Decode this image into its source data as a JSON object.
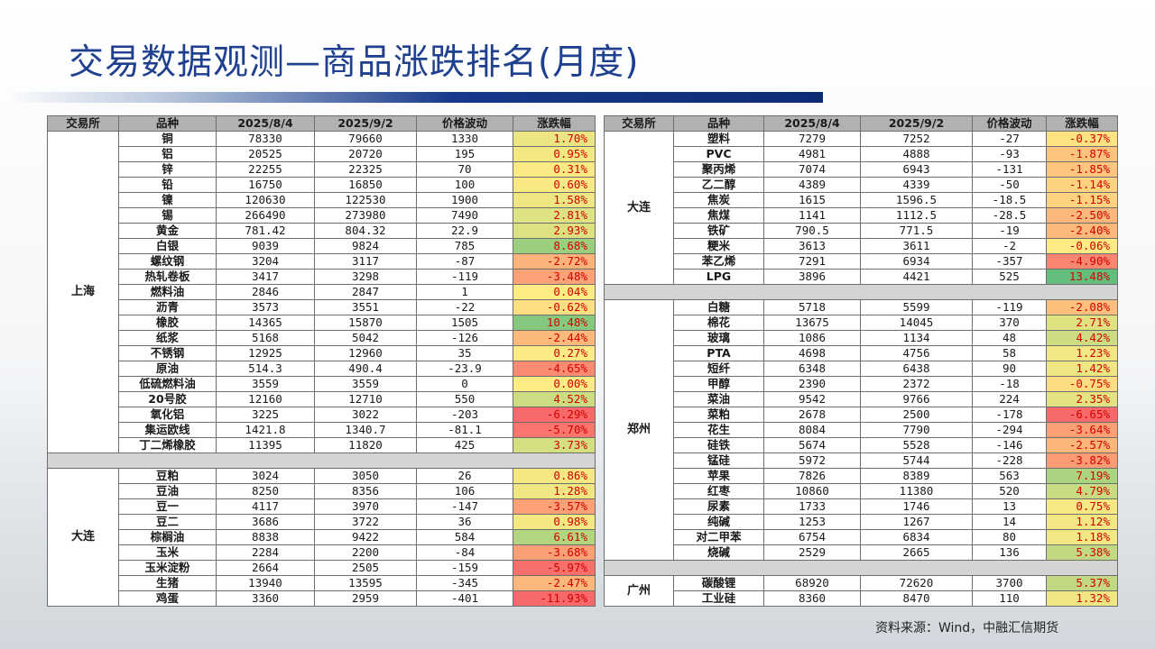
{
  "title": "交易数据观测—商品涨跌排名(月度)",
  "headers": [
    "交易所",
    "品种",
    "2025/8/4",
    "2025/9/2",
    "价格波动",
    "涨跌幅"
  ],
  "source": "资料来源：Wind，中融汇信期货",
  "colors": {
    "title": "#1f3f8f",
    "header_bg": "#b2b2b2",
    "gap_bg": "#d4d4d4",
    "pos_text": "#d40000",
    "neg_text": "#d40000",
    "pos_scale_max": "#63be7b",
    "neg_scale_max": "#f8696b",
    "scale_mid": "#ffeb84"
  },
  "left": {
    "groups": [
      {
        "exchange": "上海",
        "rows": [
          {
            "name": "铜",
            "p1": "78330",
            "p2": "79660",
            "chg": "1330",
            "pct": "1.70%",
            "v": 1.7
          },
          {
            "name": "铝",
            "p1": "20525",
            "p2": "20720",
            "chg": "195",
            "pct": "0.95%",
            "v": 0.95
          },
          {
            "name": "锌",
            "p1": "22255",
            "p2": "22325",
            "chg": "70",
            "pct": "0.31%",
            "v": 0.31
          },
          {
            "name": "铅",
            "p1": "16750",
            "p2": "16850",
            "chg": "100",
            "pct": "0.60%",
            "v": 0.6
          },
          {
            "name": "镍",
            "p1": "120630",
            "p2": "122530",
            "chg": "1900",
            "pct": "1.58%",
            "v": 1.58
          },
          {
            "name": "锡",
            "p1": "266490",
            "p2": "273980",
            "chg": "7490",
            "pct": "2.81%",
            "v": 2.81
          },
          {
            "name": "黄金",
            "p1": "781.42",
            "p2": "804.32",
            "chg": "22.9",
            "pct": "2.93%",
            "v": 2.93
          },
          {
            "name": "白银",
            "p1": "9039",
            "p2": "9824",
            "chg": "785",
            "pct": "8.68%",
            "v": 8.68
          },
          {
            "name": "螺纹钢",
            "p1": "3204",
            "p2": "3117",
            "chg": "-87",
            "pct": "-2.72%",
            "v": -2.72
          },
          {
            "name": "热轧卷板",
            "p1": "3417",
            "p2": "3298",
            "chg": "-119",
            "pct": "-3.48%",
            "v": -3.48
          },
          {
            "name": "燃料油",
            "p1": "2846",
            "p2": "2847",
            "chg": "1",
            "pct": "0.04%",
            "v": 0.04
          },
          {
            "name": "沥青",
            "p1": "3573",
            "p2": "3551",
            "chg": "-22",
            "pct": "-0.62%",
            "v": -0.62
          },
          {
            "name": "橡胶",
            "p1": "14365",
            "p2": "15870",
            "chg": "1505",
            "pct": "10.48%",
            "v": 10.48
          },
          {
            "name": "纸浆",
            "p1": "5168",
            "p2": "5042",
            "chg": "-126",
            "pct": "-2.44%",
            "v": -2.44
          },
          {
            "name": "不锈钢",
            "p1": "12925",
            "p2": "12960",
            "chg": "35",
            "pct": "0.27%",
            "v": 0.27
          },
          {
            "name": "原油",
            "p1": "514.3",
            "p2": "490.4",
            "chg": "-23.9",
            "pct": "-4.65%",
            "v": -4.65
          },
          {
            "name": "低硫燃料油",
            "p1": "3559",
            "p2": "3559",
            "chg": "0",
            "pct": "0.00%",
            "v": 0.0
          },
          {
            "name": "20号胶",
            "p1": "12160",
            "p2": "12710",
            "chg": "550",
            "pct": "4.52%",
            "v": 4.52
          },
          {
            "name": "氧化铝",
            "p1": "3225",
            "p2": "3022",
            "chg": "-203",
            "pct": "-6.29%",
            "v": -6.29
          },
          {
            "name": "集运欧线",
            "p1": "1421.8",
            "p2": "1340.7",
            "chg": "-81.1",
            "pct": "-5.70%",
            "v": -5.7
          },
          {
            "name": "丁二烯橡胶",
            "p1": "11395",
            "p2": "11820",
            "chg": "425",
            "pct": "3.73%",
            "v": 3.73
          }
        ]
      },
      {
        "exchange": "大连",
        "rows": [
          {
            "name": "豆粕",
            "p1": "3024",
            "p2": "3050",
            "chg": "26",
            "pct": "0.86%",
            "v": 0.86
          },
          {
            "name": "豆油",
            "p1": "8250",
            "p2": "8356",
            "chg": "106",
            "pct": "1.28%",
            "v": 1.28
          },
          {
            "name": "豆一",
            "p1": "4117",
            "p2": "3970",
            "chg": "-147",
            "pct": "-3.57%",
            "v": -3.57
          },
          {
            "name": "豆二",
            "p1": "3686",
            "p2": "3722",
            "chg": "36",
            "pct": "0.98%",
            "v": 0.98
          },
          {
            "name": "棕榈油",
            "p1": "8838",
            "p2": "9422",
            "chg": "584",
            "pct": "6.61%",
            "v": 6.61
          },
          {
            "name": "玉米",
            "p1": "2284",
            "p2": "2200",
            "chg": "-84",
            "pct": "-3.68%",
            "v": -3.68
          },
          {
            "name": "玉米淀粉",
            "p1": "2664",
            "p2": "2505",
            "chg": "-159",
            "pct": "-5.97%",
            "v": -5.97
          },
          {
            "name": "生猪",
            "p1": "13940",
            "p2": "13595",
            "chg": "-345",
            "pct": "-2.47%",
            "v": -2.47
          },
          {
            "name": "鸡蛋",
            "p1": "3360",
            "p2": "2959",
            "chg": "-401",
            "pct": "-11.93%",
            "v": -11.93
          }
        ]
      }
    ]
  },
  "right": {
    "groups": [
      {
        "exchange": "大连",
        "rows": [
          {
            "name": "塑料",
            "p1": "7279",
            "p2": "7252",
            "chg": "-27",
            "pct": "-0.37%",
            "v": -0.37
          },
          {
            "name": "PVC",
            "p1": "4981",
            "p2": "4888",
            "chg": "-93",
            "pct": "-1.87%",
            "v": -1.87
          },
          {
            "name": "聚丙烯",
            "p1": "7074",
            "p2": "6943",
            "chg": "-131",
            "pct": "-1.85%",
            "v": -1.85
          },
          {
            "name": "乙二醇",
            "p1": "4389",
            "p2": "4339",
            "chg": "-50",
            "pct": "-1.14%",
            "v": -1.14
          },
          {
            "name": "焦炭",
            "p1": "1615",
            "p2": "1596.5",
            "chg": "-18.5",
            "pct": "-1.15%",
            "v": -1.15
          },
          {
            "name": "焦煤",
            "p1": "1141",
            "p2": "1112.5",
            "chg": "-28.5",
            "pct": "-2.50%",
            "v": -2.5
          },
          {
            "name": "铁矿",
            "p1": "790.5",
            "p2": "771.5",
            "chg": "-19",
            "pct": "-2.40%",
            "v": -2.4
          },
          {
            "name": "粳米",
            "p1": "3613",
            "p2": "3611",
            "chg": "-2",
            "pct": "-0.06%",
            "v": -0.06
          },
          {
            "name": "苯乙烯",
            "p1": "7291",
            "p2": "6934",
            "chg": "-357",
            "pct": "-4.90%",
            "v": -4.9
          },
          {
            "name": "LPG",
            "p1": "3896",
            "p2": "4421",
            "chg": "525",
            "pct": "13.48%",
            "v": 13.48
          }
        ]
      },
      {
        "exchange": "郑州",
        "rows": [
          {
            "name": "白糖",
            "p1": "5718",
            "p2": "5599",
            "chg": "-119",
            "pct": "-2.08%",
            "v": -2.08
          },
          {
            "name": "棉花",
            "p1": "13675",
            "p2": "14045",
            "chg": "370",
            "pct": "2.71%",
            "v": 2.71
          },
          {
            "name": "玻璃",
            "p1": "1086",
            "p2": "1134",
            "chg": "48",
            "pct": "4.42%",
            "v": 4.42
          },
          {
            "name": "PTA",
            "p1": "4698",
            "p2": "4756",
            "chg": "58",
            "pct": "1.23%",
            "v": 1.23
          },
          {
            "name": "短纤",
            "p1": "6348",
            "p2": "6438",
            "chg": "90",
            "pct": "1.42%",
            "v": 1.42
          },
          {
            "name": "甲醇",
            "p1": "2390",
            "p2": "2372",
            "chg": "-18",
            "pct": "-0.75%",
            "v": -0.75
          },
          {
            "name": "菜油",
            "p1": "9542",
            "p2": "9766",
            "chg": "224",
            "pct": "2.35%",
            "v": 2.35
          },
          {
            "name": "菜粕",
            "p1": "2678",
            "p2": "2500",
            "chg": "-178",
            "pct": "-6.65%",
            "v": -6.65
          },
          {
            "name": "花生",
            "p1": "8084",
            "p2": "7790",
            "chg": "-294",
            "pct": "-3.64%",
            "v": -3.64
          },
          {
            "name": "硅铁",
            "p1": "5674",
            "p2": "5528",
            "chg": "-146",
            "pct": "-2.57%",
            "v": -2.57
          },
          {
            "name": "锰硅",
            "p1": "5972",
            "p2": "5744",
            "chg": "-228",
            "pct": "-3.82%",
            "v": -3.82
          },
          {
            "name": "苹果",
            "p1": "7826",
            "p2": "8389",
            "chg": "563",
            "pct": "7.19%",
            "v": 7.19
          },
          {
            "name": "红枣",
            "p1": "10860",
            "p2": "11380",
            "chg": "520",
            "pct": "4.79%",
            "v": 4.79
          },
          {
            "name": "尿素",
            "p1": "1733",
            "p2": "1746",
            "chg": "13",
            "pct": "0.75%",
            "v": 0.75
          },
          {
            "name": "纯碱",
            "p1": "1253",
            "p2": "1267",
            "chg": "14",
            "pct": "1.12%",
            "v": 1.12
          },
          {
            "name": "对二甲苯",
            "p1": "6754",
            "p2": "6834",
            "chg": "80",
            "pct": "1.18%",
            "v": 1.18
          },
          {
            "name": "烧碱",
            "p1": "2529",
            "p2": "2665",
            "chg": "136",
            "pct": "5.38%",
            "v": 5.38
          }
        ]
      },
      {
        "exchange": "广州",
        "rows": [
          {
            "name": "碳酸锂",
            "p1": "68920",
            "p2": "72620",
            "chg": "3700",
            "pct": "5.37%",
            "v": 5.37
          },
          {
            "name": "工业硅",
            "p1": "8360",
            "p2": "8470",
            "chg": "110",
            "pct": "1.32%",
            "v": 1.32
          }
        ]
      }
    ]
  }
}
